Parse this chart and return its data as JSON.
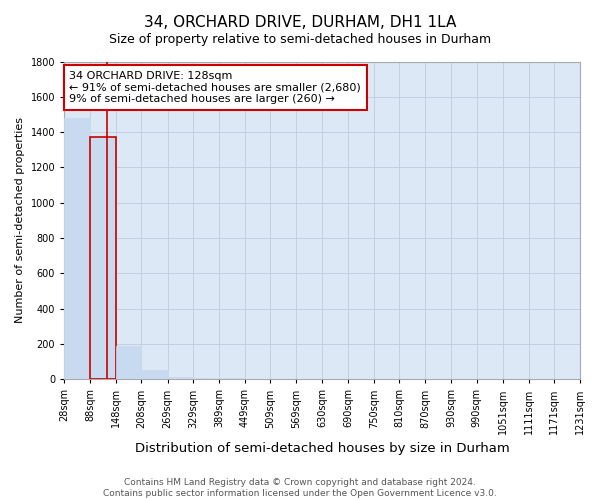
{
  "title": "34, ORCHARD DRIVE, DURHAM, DH1 1LA",
  "subtitle": "Size of property relative to semi-detached houses in Durham",
  "xlabel": "Distribution of semi-detached houses by size in Durham",
  "ylabel": "Number of semi-detached properties",
  "footer_line1": "Contains HM Land Registry data © Crown copyright and database right 2024.",
  "footer_line2": "Contains public sector information licensed under the Open Government Licence v3.0.",
  "annotation_line1": "34 ORCHARD DRIVE: 128sqm",
  "annotation_line2": "← 91% of semi-detached houses are smaller (2,680)",
  "annotation_line3": "9% of semi-detached houses are larger (260) →",
  "property_size": 128,
  "bin_edges": [
    28,
    88,
    148,
    208,
    269,
    329,
    389,
    449,
    509,
    569,
    630,
    690,
    750,
    810,
    870,
    930,
    990,
    1051,
    1111,
    1171,
    1231
  ],
  "bar_heights": [
    1480,
    1370,
    190,
    55,
    15,
    8,
    5,
    3,
    2,
    2,
    2,
    1,
    1,
    1,
    1,
    1,
    1,
    0,
    0,
    0
  ],
  "bar_color": "#c8daf0",
  "highlight_bar_index": 1,
  "highlight_edge_color": "#cc0000",
  "vline_color": "#cc0000",
  "vline_x": 128,
  "annotation_box_color": "#cc0000",
  "ylim": [
    0,
    1800
  ],
  "yticks": [
    0,
    200,
    400,
    600,
    800,
    1000,
    1200,
    1400,
    1600,
    1800
  ],
  "background_color": "#ffffff",
  "plot_bg_color": "#dce8f5",
  "grid_color": "#c0d0e0",
  "title_fontsize": 11,
  "subtitle_fontsize": 9,
  "xlabel_fontsize": 9.5,
  "ylabel_fontsize": 8,
  "tick_fontsize": 7,
  "annotation_fontsize": 8,
  "footer_fontsize": 6.5
}
